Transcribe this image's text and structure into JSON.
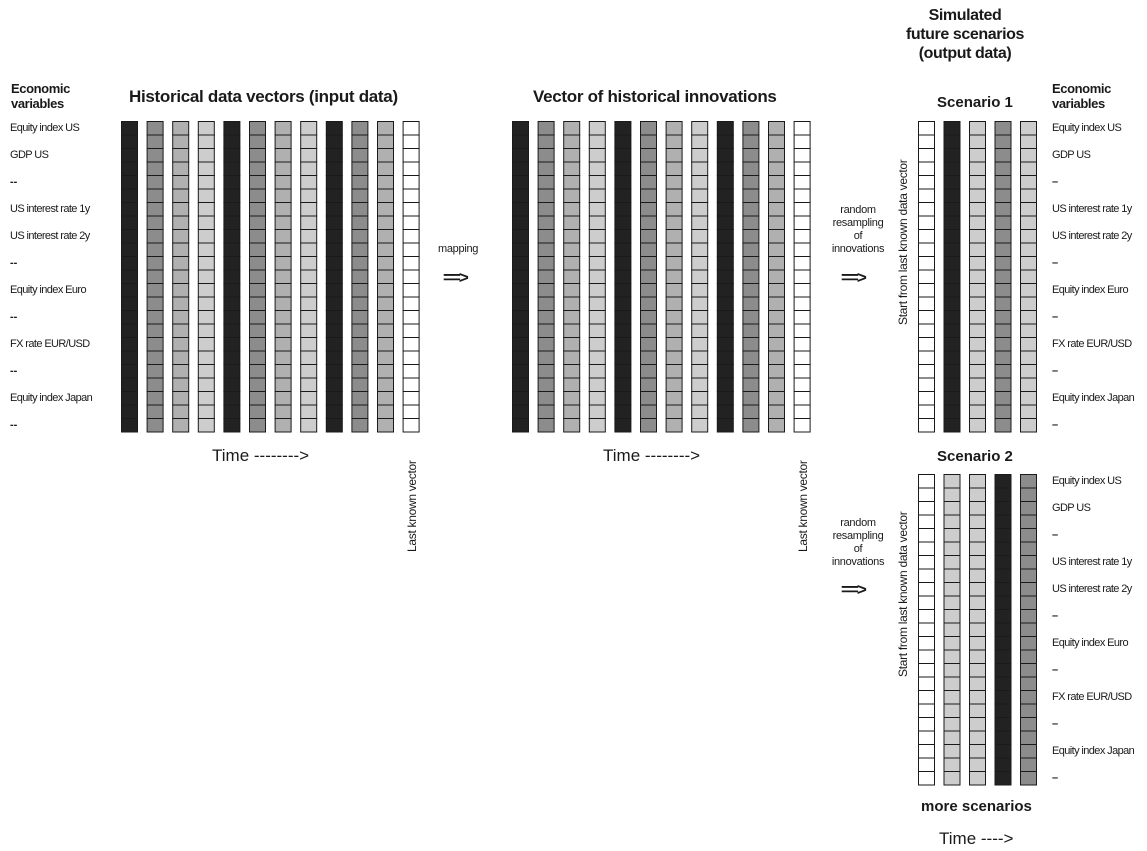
{
  "top_title": [
    "Simulated",
    "future scenarios",
    "(output data)"
  ],
  "left_header": [
    "Economic",
    "variables"
  ],
  "right_header": [
    "Economic",
    "variables"
  ],
  "panel_titles": {
    "historical": "Historical data vectors (input data)",
    "innovations": "Vector of historical innovations"
  },
  "scenario_labels": [
    "Scenario 1",
    "Scenario 2"
  ],
  "more_scenarios": "more scenarios",
  "left_variables": [
    "Equity index US",
    "GDP US",
    "--",
    "US interest rate 1y",
    "US interest rate 2y",
    "--",
    "Equity index Euro",
    "--",
    "FX rate EUR/USD",
    "--",
    "Equity index Japan",
    "--"
  ],
  "right_variables_s1": [
    "Equity index US",
    "GDP US",
    "–",
    "US interest rate 1y",
    "US interest rate 2y",
    "–",
    "Equity index Euro",
    "–",
    "FX rate EUR/USD",
    "–",
    "Equity index Japan",
    "–"
  ],
  "right_variables_s2": [
    "Equity index US",
    "GDP US",
    "–",
    "US interest rate 1y",
    "US interest rate 2y",
    "–",
    "Equity index Euro",
    "–",
    "FX rate EUR/USD",
    "–",
    "Equity index Japan",
    "–"
  ],
  "mapping_label": "mapping",
  "mapping_arrow": "==>",
  "resampling_label": [
    "random",
    "resampling",
    "of",
    "innovations"
  ],
  "resampling_arrow": "==>",
  "time_label": "Time  -------->",
  "time_label_bottom": "Time  ---->",
  "last_known_vector": "Last known vector",
  "start_from_label": "Start from last known data vector",
  "historical_column_shades": [
    "black",
    "dark",
    "mid",
    "light",
    "black",
    "dark",
    "mid",
    "light",
    "black",
    "dark",
    "mid",
    "white"
  ],
  "innovation_column_shades": [
    "black",
    "dark",
    "mid",
    "light",
    "black",
    "dark",
    "mid",
    "light",
    "black",
    "dark",
    "mid",
    "white"
  ],
  "scenario1_column_shades": [
    "white",
    "black",
    "light",
    "dark",
    "light"
  ],
  "scenario2_column_shades": [
    "white",
    "light",
    "light",
    "black",
    "dark"
  ],
  "shade_colors": {
    "black": "#222222",
    "dark": "#8c8c8c",
    "mid": "#b0b0b0",
    "light": "#cdcdcd",
    "white": "#ffffff"
  }
}
